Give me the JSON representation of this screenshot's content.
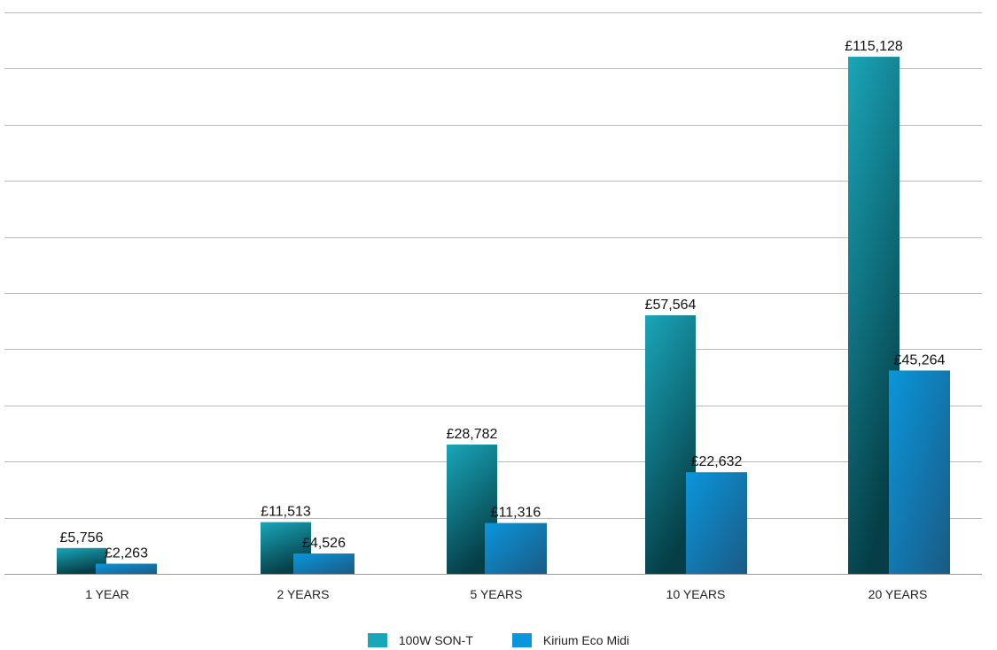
{
  "chart_data": {
    "type": "bar",
    "categories": [
      "1 YEAR",
      "2 YEARS",
      "5 YEARS",
      "10 YEARS",
      "20 YEARS"
    ],
    "series": [
      {
        "name": "100W SON-T",
        "values": [
          5756,
          11513,
          28782,
          57564,
          115128
        ],
        "labels": [
          "£5,756",
          "£11,513",
          "£28,782",
          "£57,564",
          "£115,128"
        ]
      },
      {
        "name": "Kirium Eco Midi",
        "values": [
          2263,
          4526,
          11316,
          22632,
          45264
        ],
        "labels": [
          "£2,263",
          "£4,526",
          "£11,316",
          "£22,632",
          "£45,264"
        ]
      }
    ],
    "ylim": [
      0,
      125000
    ],
    "grid": true,
    "legend": "bottom-center"
  },
  "colors": {
    "son_top": "#1aa6b9",
    "son_bottom": "#053e47",
    "kirium_top": "#0a96dc",
    "kirium_bottom": "#1a5a84",
    "gridline": "#b9b9b9"
  }
}
